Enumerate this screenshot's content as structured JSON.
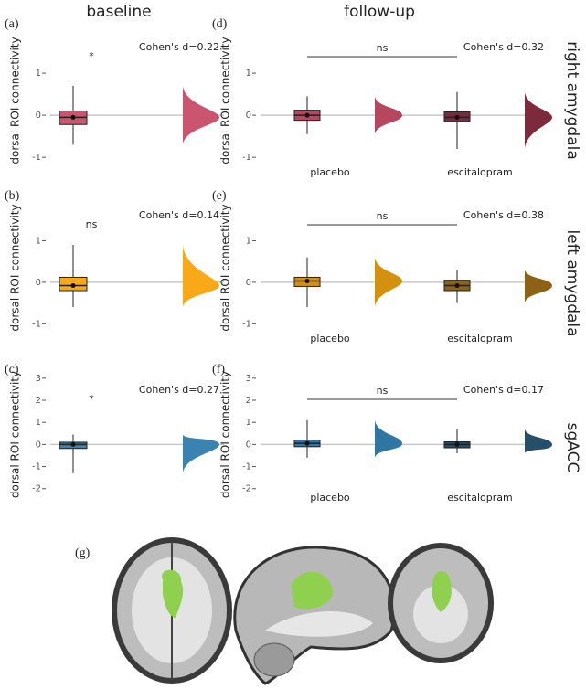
{
  "figure": {
    "column_headers": [
      "baseline",
      "follow-up"
    ],
    "row_labels": [
      "right amygdala",
      "left amygdala",
      "sgACC"
    ],
    "brain_panel_label": "(g)"
  },
  "chart_data": [
    {
      "type": "raincloud",
      "panel_label": "(a)",
      "ylabel": "dorsal ROI connectivity",
      "annotation": "Cohen's d=0.22",
      "significance": "*",
      "ylim": [
        -1.3,
        2
      ],
      "yticks": [
        -1,
        0,
        1
      ],
      "reference_line": 0,
      "groups": [
        {
          "color": "#c9556e",
          "whisker_low": -0.7,
          "q1": -0.22,
          "median": -0.05,
          "q3": 0.1,
          "whisker_high": 0.7
        }
      ]
    },
    {
      "type": "raincloud",
      "panel_label": "(b)",
      "ylabel": "dorsal ROI connectivity",
      "annotation": "Cohen's d=0.14",
      "significance": "ns",
      "ylim": [
        -1.3,
        2
      ],
      "yticks": [
        -1,
        0,
        1
      ],
      "reference_line": 0,
      "groups": [
        {
          "color": "#f9a818",
          "whisker_low": -0.6,
          "q1": -0.2,
          "median": -0.08,
          "q3": 0.12,
          "whisker_high": 0.9
        }
      ]
    },
    {
      "type": "raincloud",
      "panel_label": "(c)",
      "ylabel": "dorsal ROI connectivity",
      "annotation": "Cohen's d=0.27",
      "significance": "*",
      "ylim": [
        -2.3,
        3.2
      ],
      "yticks": [
        -2,
        -1,
        0,
        1,
        2,
        3
      ],
      "reference_line": 0,
      "groups": [
        {
          "color": "#3a83b0",
          "whisker_low": -1.3,
          "q1": -0.18,
          "median": 0,
          "q3": 0.1,
          "whisker_high": 0.45
        }
      ]
    },
    {
      "type": "raincloud",
      "panel_label": "(d)",
      "ylabel": "dorsal ROI connectivity",
      "annotation": "Cohen's d=0.32",
      "significance": "ns",
      "ylim": [
        -1.3,
        2
      ],
      "yticks": [
        -1,
        0,
        1
      ],
      "reference_line": 0,
      "groups": [
        {
          "name": "placebo",
          "color": "#b5475f",
          "whisker_low": -0.45,
          "q1": -0.12,
          "median": 0,
          "q3": 0.12,
          "whisker_high": 0.45
        },
        {
          "name": "escitalopram",
          "color": "#7d2a3c",
          "whisker_low": -0.8,
          "q1": -0.15,
          "median": -0.05,
          "q3": 0.08,
          "whisker_high": 0.55
        }
      ]
    },
    {
      "type": "raincloud",
      "panel_label": "(e)",
      "ylabel": "dorsal ROI connectivity",
      "annotation": "Cohen's d=0.38",
      "significance": "ns",
      "ylim": [
        -1.3,
        2
      ],
      "yticks": [
        -1,
        0,
        1
      ],
      "reference_line": 0,
      "groups": [
        {
          "name": "placebo",
          "color": "#d4900f",
          "whisker_low": -0.6,
          "q1": -0.1,
          "median": 0.03,
          "q3": 0.12,
          "whisker_high": 0.6
        },
        {
          "name": "escitalopram",
          "color": "#8c6316",
          "whisker_low": -0.5,
          "q1": -0.2,
          "median": -0.08,
          "q3": 0.05,
          "whisker_high": 0.3
        }
      ]
    },
    {
      "type": "raincloud",
      "panel_label": "(f)",
      "ylabel": "dorsal ROI connectivity",
      "annotation": "Cohen's d=0.17",
      "significance": "ns",
      "ylim": [
        -2.3,
        3.2
      ],
      "yticks": [
        -2,
        -1,
        0,
        1,
        2,
        3
      ],
      "reference_line": 0,
      "groups": [
        {
          "name": "placebo",
          "color": "#2f76a2",
          "whisker_low": -0.6,
          "q1": -0.1,
          "median": 0.05,
          "q3": 0.2,
          "whisker_high": 1.1
        },
        {
          "name": "escitalopram",
          "color": "#254e69",
          "whisker_low": -0.4,
          "q1": -0.15,
          "median": 0,
          "q3": 0.12,
          "whisker_high": 0.7
        }
      ]
    }
  ]
}
